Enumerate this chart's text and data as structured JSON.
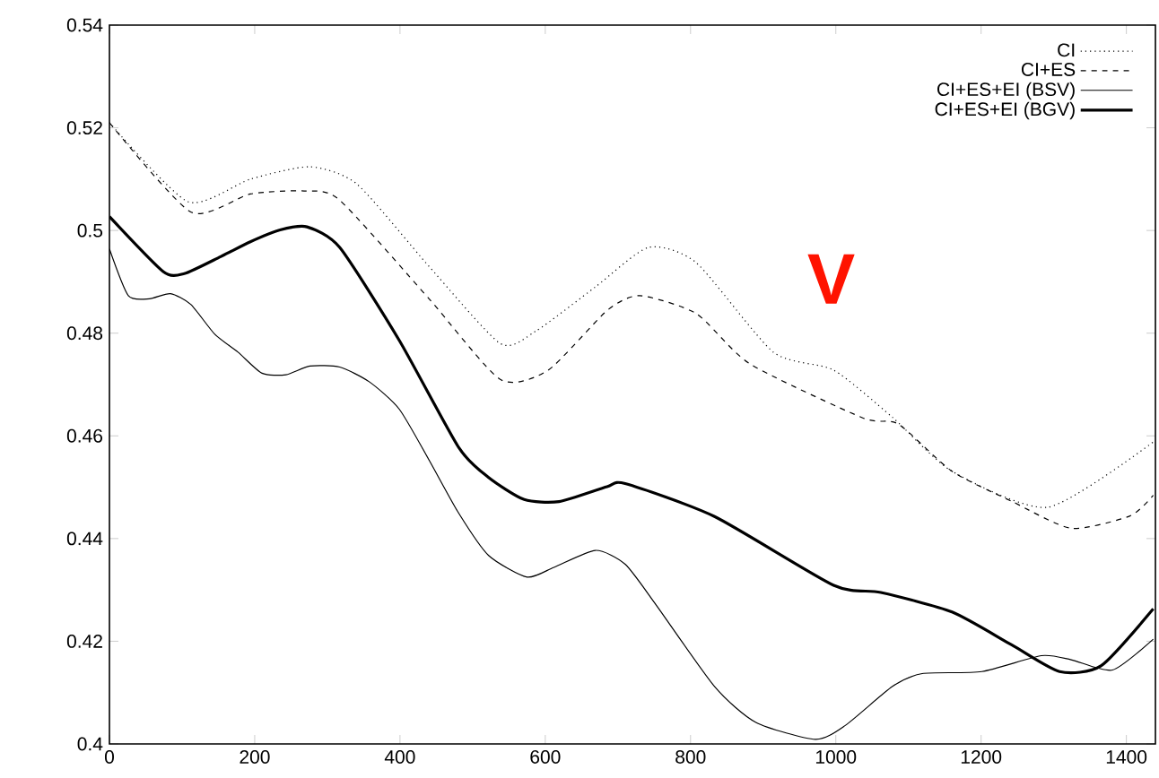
{
  "chart_data": {
    "type": "line",
    "xlim": [
      0,
      1440
    ],
    "ylim": [
      0.4,
      0.54
    ],
    "xticks": [
      0,
      200,
      400,
      600,
      800,
      1000,
      1200,
      1400
    ],
    "yticks": [
      0.4,
      0.42,
      0.44,
      0.46,
      0.48,
      0.5,
      0.52,
      0.54
    ],
    "legend": "top right",
    "annotations": [
      "V"
    ],
    "series": [
      {
        "name": "CI",
        "color": "#000000",
        "line_style": "dotted",
        "x": [
          0,
          108,
          194,
          276,
          341,
          440,
          538,
          587,
          669,
          742,
          808,
          914,
          997,
          1078,
          1160,
          1292,
          1437
        ],
        "values": [
          0.521,
          0.5056,
          0.51,
          0.5124,
          0.509,
          0.493,
          0.478,
          0.4804,
          0.489,
          0.4967,
          0.4937,
          0.4763,
          0.4728,
          0.4636,
          0.4531,
          0.4461,
          0.4588
        ]
      },
      {
        "name": "CI+ES",
        "color": "#000000",
        "line_style": "dashed",
        "x": [
          0,
          112,
          194,
          268,
          317,
          440,
          538,
          604,
          685,
          730,
          808,
          882,
          1037,
          1086,
          1160,
          1243,
          1324,
          1405,
          1437
        ],
        "values": [
          0.521,
          0.5036,
          0.5071,
          0.5077,
          0.5059,
          0.4867,
          0.471,
          0.4728,
          0.4844,
          0.4873,
          0.4838,
          0.474,
          0.4635,
          0.4623,
          0.4531,
          0.4472,
          0.442,
          0.4444,
          0.4484
        ]
      },
      {
        "name": "CI+ES+EI (BSV)",
        "color": "#000000",
        "line_style": "solid",
        "x": [
          0,
          26,
          55,
          84,
          112,
          145,
          177,
          210,
          243,
          276,
          317,
          358,
          399,
          440,
          481,
          522,
          575,
          612,
          669,
          710,
          751,
          833,
          890,
          972,
          1013,
          1078,
          1119,
          1201,
          1283,
          1324,
          1381,
          1437
        ],
        "values": [
          0.4964,
          0.4873,
          0.4867,
          0.4877,
          0.4856,
          0.4798,
          0.4763,
          0.4722,
          0.4719,
          0.4736,
          0.4734,
          0.4705,
          0.4652,
          0.4553,
          0.4449,
          0.4367,
          0.4325,
          0.4344,
          0.4377,
          0.435,
          0.4274,
          0.4112,
          0.4042,
          0.4009,
          0.4036,
          0.4112,
          0.4137,
          0.4141,
          0.4172,
          0.4164,
          0.4144,
          0.4204
        ]
      },
      {
        "name": "CI+ES+EI (BGV)",
        "color": "#000000",
        "line_style": "solid",
        "x": [
          0,
          74,
          103,
          153,
          194,
          235,
          272,
          317,
          399,
          481,
          522,
          571,
          619,
          685,
          710,
          833,
          997,
          1062,
          1160,
          1242,
          1308,
          1365,
          1437
        ],
        "values": [
          0.5027,
          0.492,
          0.4916,
          0.4949,
          0.4978,
          0.5001,
          0.5007,
          0.4967,
          0.4786,
          0.4577,
          0.4519,
          0.4476,
          0.4472,
          0.4501,
          0.4507,
          0.4443,
          0.4309,
          0.4295,
          0.4257,
          0.4193,
          0.4141,
          0.4152,
          0.4263
        ]
      }
    ]
  }
}
